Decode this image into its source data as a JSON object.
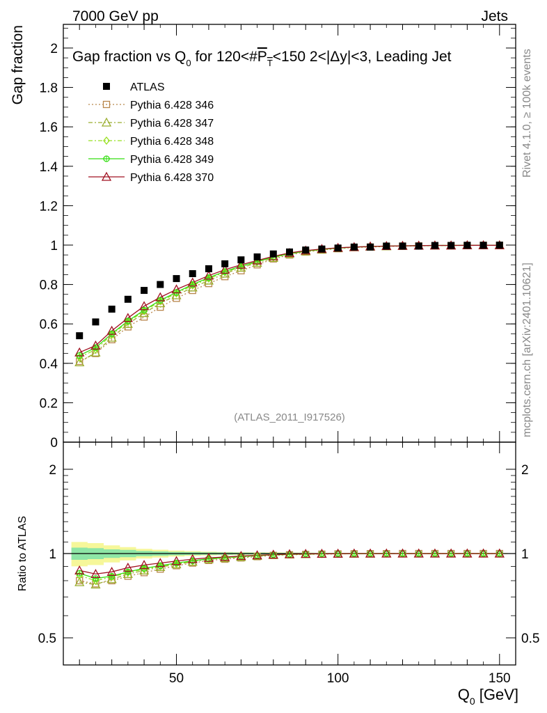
{
  "header": {
    "left": "7000 GeV pp",
    "right": "Jets"
  },
  "side_labels": {
    "rivet": "Rivet 4.1.0, ≥ 100k events",
    "mcplots": "mcplots.cern.ch [arXiv:2401.10621]"
  },
  "chart_data": [
    {
      "type": "scatter",
      "panel": "main",
      "title": "Gap fraction vs Q0 for 120<#PT<150  2<|Δy|<3, Leading Jet",
      "title_parts": {
        "a": "Gap fraction vs Q",
        "a_sub": "0",
        "b": " for 120<#",
        "c": "P",
        "c_sub": "T",
        "d": "<150  2<|Δy|<3, Leading Jet"
      },
      "ylabel": "Gap fraction",
      "xlabel": "",
      "xlim": [
        15,
        155
      ],
      "ylim": [
        0,
        2.12
      ],
      "yticks": [
        0,
        0.2,
        0.4,
        0.6,
        0.8,
        1,
        1.2,
        1.4,
        1.6,
        1.8,
        2
      ],
      "ytick_labels": [
        "0",
        "0.2",
        "0.4",
        "0.6",
        "0.8",
        "1",
        "1.2",
        "1.4",
        "1.6",
        "1.8",
        "2"
      ],
      "watermark": "(ATLAS_2011_I917526)",
      "x": [
        20,
        25,
        30,
        35,
        40,
        45,
        50,
        55,
        60,
        65,
        70,
        75,
        80,
        85,
        90,
        95,
        100,
        105,
        110,
        115,
        120,
        125,
        130,
        135,
        140,
        145,
        150
      ],
      "series": [
        {
          "name": "ATLAS",
          "color": "#000000",
          "marker": "filled-square",
          "line": "none",
          "values": [
            0.54,
            0.61,
            0.675,
            0.725,
            0.77,
            0.8,
            0.83,
            0.855,
            0.88,
            0.905,
            0.925,
            0.94,
            0.955,
            0.965,
            0.975,
            0.98,
            0.985,
            0.99,
            0.99,
            0.995,
            0.995,
            0.995,
            0.998,
            0.998,
            0.999,
            0.999,
            1.0
          ]
        },
        {
          "name": "Pythia 6.428 346",
          "color": "#b8864b",
          "marker": "open-square",
          "line": "dotted",
          "values": [
            0.41,
            0.45,
            0.52,
            0.585,
            0.635,
            0.685,
            0.73,
            0.77,
            0.805,
            0.84,
            0.87,
            0.9,
            0.93,
            0.95,
            0.965,
            0.975,
            0.982,
            0.988,
            0.99,
            0.993,
            0.995,
            0.996,
            0.997,
            0.998,
            0.998,
            0.999,
            0.999
          ]
        },
        {
          "name": "Pythia 6.428 347",
          "color": "#9aae2e",
          "marker": "open-triangle",
          "line": "dashdot",
          "values": [
            0.405,
            0.455,
            0.53,
            0.6,
            0.655,
            0.705,
            0.745,
            0.785,
            0.82,
            0.855,
            0.885,
            0.91,
            0.935,
            0.955,
            0.968,
            0.977,
            0.984,
            0.989,
            0.992,
            0.994,
            0.996,
            0.997,
            0.998,
            0.998,
            0.999,
            0.999,
            0.999
          ]
        },
        {
          "name": "Pythia 6.428 348",
          "color": "#98e020",
          "marker": "open-diamond",
          "line": "dashdot",
          "values": [
            0.43,
            0.47,
            0.545,
            0.61,
            0.665,
            0.715,
            0.755,
            0.795,
            0.83,
            0.862,
            0.89,
            0.915,
            0.938,
            0.956,
            0.969,
            0.978,
            0.985,
            0.99,
            0.993,
            0.995,
            0.996,
            0.997,
            0.998,
            0.998,
            0.999,
            0.999,
            0.999
          ]
        },
        {
          "name": "Pythia 6.428 349",
          "color": "#33dd11",
          "marker": "open-circle-cross",
          "line": "solid",
          "values": [
            0.44,
            0.48,
            0.55,
            0.615,
            0.67,
            0.72,
            0.76,
            0.8,
            0.835,
            0.866,
            0.893,
            0.917,
            0.94,
            0.957,
            0.97,
            0.979,
            0.985,
            0.99,
            0.993,
            0.995,
            0.996,
            0.997,
            0.998,
            0.998,
            0.999,
            0.999,
            0.999
          ]
        },
        {
          "name": "Pythia 6.428 370",
          "color": "#a01020",
          "marker": "open-triangle",
          "line": "solid",
          "values": [
            0.455,
            0.49,
            0.565,
            0.63,
            0.69,
            0.735,
            0.775,
            0.81,
            0.845,
            0.875,
            0.9,
            0.922,
            0.943,
            0.96,
            0.972,
            0.98,
            0.986,
            0.99,
            0.993,
            0.995,
            0.996,
            0.997,
            0.998,
            0.998,
            0.999,
            0.999,
            0.999
          ]
        }
      ]
    },
    {
      "type": "scatter",
      "panel": "ratio",
      "ylabel": "Ratio to ATLAS",
      "xlabel": "Q0 [GeV]",
      "xlabel_parts": {
        "a": "Q",
        "sub": "0",
        "b": " [GeV]"
      },
      "xlim": [
        15,
        155
      ],
      "ylim": [
        0.4,
        2.5
      ],
      "yscale": "log",
      "yticks": [
        0.5,
        1,
        2
      ],
      "ytick_labels": [
        "0.5",
        "1",
        "2"
      ],
      "xticks": [
        50,
        100,
        150
      ],
      "xtick_labels": [
        "50",
        "100",
        "150"
      ],
      "reference_band": {
        "x": [
          20,
          25,
          30,
          35,
          40,
          45,
          50,
          55,
          60,
          65,
          70,
          75,
          80,
          85,
          90,
          95,
          100,
          105,
          110,
          115,
          120,
          125,
          130,
          135,
          140,
          145,
          150
        ],
        "inner": [
          0.05,
          0.045,
          0.035,
          0.03,
          0.022,
          0.018,
          0.014,
          0.012,
          0.01,
          0.009,
          0.008,
          0.007,
          0.006,
          0.006,
          0.005,
          0.005,
          0.004,
          0.004,
          0.004,
          0.004,
          0.003,
          0.003,
          0.003,
          0.003,
          0.003,
          0.003,
          0.003
        ],
        "outer": [
          0.1,
          0.09,
          0.07,
          0.055,
          0.04,
          0.032,
          0.025,
          0.02,
          0.016,
          0.013,
          0.011,
          0.01,
          0.009,
          0.008,
          0.007,
          0.006,
          0.006,
          0.005,
          0.005,
          0.005,
          0.004,
          0.004,
          0.004,
          0.004,
          0.004,
          0.004,
          0.004
        ],
        "inner_color": "#8ee6a6",
        "outer_color": "#f6f79a"
      },
      "series": [
        {
          "name": "Pythia 6.428 346",
          "color": "#b8864b",
          "marker": "open-square",
          "line": "dotted",
          "values": [
            0.8,
            0.78,
            0.8,
            0.83,
            0.855,
            0.88,
            0.905,
            0.925,
            0.945,
            0.955,
            0.965,
            0.975,
            0.985,
            0.99,
            0.993,
            0.995,
            0.997,
            0.998,
            0.999,
            0.999,
            1.0,
            1.0,
            1.0,
            1.0,
            1.0,
            1.0,
            1.0
          ]
        },
        {
          "name": "Pythia 6.428 347",
          "color": "#9aae2e",
          "marker": "open-triangle",
          "line": "dashdot",
          "values": [
            0.79,
            0.775,
            0.81,
            0.845,
            0.87,
            0.895,
            0.915,
            0.935,
            0.955,
            0.963,
            0.972,
            0.98,
            0.988,
            0.992,
            0.995,
            0.997,
            0.998,
            0.999,
            0.999,
            1.0,
            1.0,
            1.0,
            1.0,
            1.0,
            1.0,
            1.0,
            1.0
          ]
        },
        {
          "name": "Pythia 6.428 348",
          "color": "#98e020",
          "marker": "open-diamond",
          "line": "dashdot",
          "values": [
            0.835,
            0.8,
            0.825,
            0.855,
            0.88,
            0.9,
            0.92,
            0.94,
            0.955,
            0.965,
            0.975,
            0.982,
            0.989,
            0.993,
            0.995,
            0.997,
            0.998,
            0.999,
            1.0,
            1.0,
            1.0,
            1.0,
            1.0,
            1.0,
            1.0,
            1.0,
            1.0
          ]
        },
        {
          "name": "Pythia 6.428 349",
          "color": "#33dd11",
          "marker": "open-circle-cross",
          "line": "solid",
          "values": [
            0.85,
            0.815,
            0.83,
            0.86,
            0.885,
            0.905,
            0.925,
            0.942,
            0.957,
            0.967,
            0.976,
            0.983,
            0.99,
            0.993,
            0.996,
            0.998,
            0.999,
            0.999,
            1.0,
            1.0,
            1.0,
            1.0,
            1.0,
            1.0,
            1.0,
            1.0,
            1.0
          ]
        },
        {
          "name": "Pythia 6.428 370",
          "color": "#a01020",
          "marker": "open-triangle",
          "line": "solid",
          "values": [
            0.87,
            0.845,
            0.86,
            0.89,
            0.91,
            0.925,
            0.94,
            0.955,
            0.965,
            0.972,
            0.98,
            0.986,
            0.991,
            0.995,
            0.997,
            0.998,
            0.999,
            1.0,
            1.0,
            1.0,
            1.0,
            1.0,
            1.0,
            1.0,
            1.0,
            1.0,
            1.0
          ]
        }
      ]
    }
  ]
}
